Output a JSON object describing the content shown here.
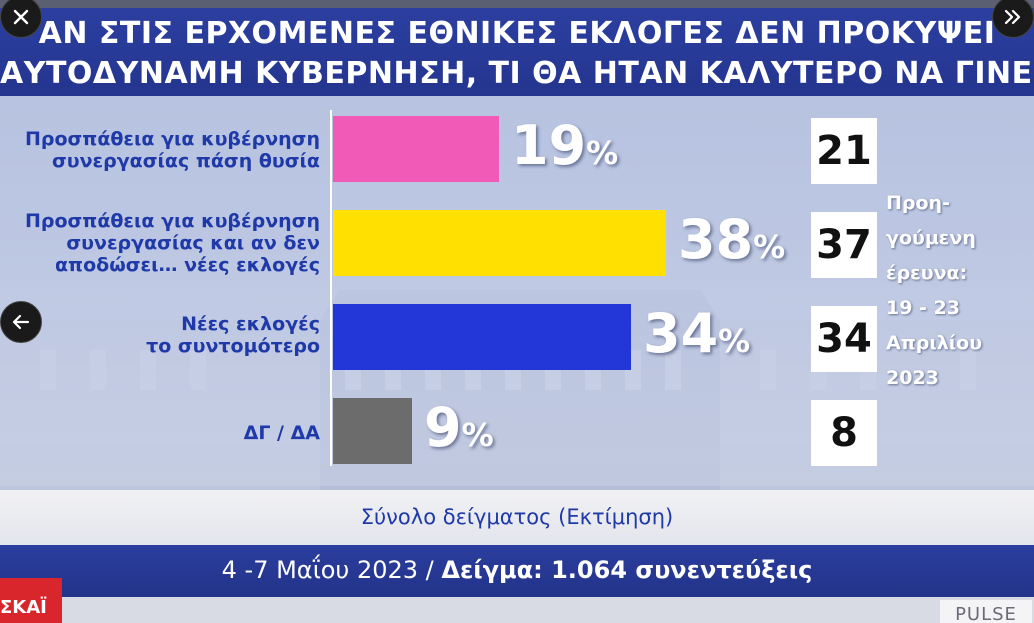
{
  "title": {
    "line1": "ΑΝ ΣΤΙΣ ΕΡΧΟΜΕΝΕΣ ΕΘΝΙΚΕΣ ΕΚΛΟΓΕΣ ΔΕΝ ΠΡΟΚΥΨΕΙ",
    "line2": "ΑΥΤΟΔΥΝΑΜΗ ΚΥΒΕΡΝΗΣΗ, ΤΙ ΘΑ ΗΤΑΝ ΚΑΛΥΤΕΡΟ ΝΑ ΓΙΝΕΙ;"
  },
  "chart_data": {
    "type": "bar",
    "orientation": "horizontal",
    "categories": [
      "Προσπάθεια για κυβέρνηση\nσυνεργασίας πάση θυσία",
      "Προσπάθεια για κυβέρνηση\nσυνεργασίας και αν δεν\nαποδώσει… νέες εκλογές",
      "Νέες εκλογές\nτο συντομότερο",
      "ΔΓ / ΔΑ"
    ],
    "values": [
      19,
      38,
      34,
      9
    ],
    "value_suffix": "%",
    "colors": [
      "#f15ab7",
      "#ffe000",
      "#2337d8",
      "#6c6c6c"
    ],
    "previous_values": [
      21,
      37,
      34,
      8
    ],
    "previous_note": "Προη-\nγούμενη\nέρευνα:\n19 - 23\nΑπριλίου\n2023",
    "xlim": [
      0,
      40
    ]
  },
  "sample_text": "Σύνολο δείγματος (Εκτίμηση)",
  "footer": {
    "dates": "4 -7 Μαΐου 2023 / ",
    "sample_label": "Δείγμα: 1.064 συνεντεύξεις"
  },
  "branding": {
    "channel_logo_text": "ΣΚΑΪ",
    "pollster_logo_text": "PULSE"
  },
  "controls": {
    "close_icon": "close-icon",
    "expand_icon": "double-chevron-right-icon",
    "back_icon": "arrow-left-icon"
  }
}
